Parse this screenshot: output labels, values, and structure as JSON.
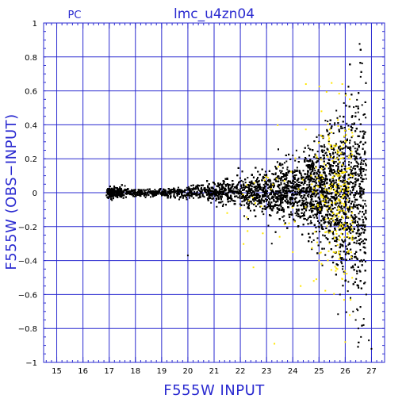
{
  "chart_data": {
    "type": "scatter",
    "title": "lmc_u4zn04",
    "corner_label": "PC",
    "xlabel": "F555W  INPUT",
    "ylabel": "F555W  (OBS−INPUT)",
    "xlim": [
      14.5,
      27.5
    ],
    "ylim": [
      -1,
      1
    ],
    "xticks": [
      15,
      16,
      17,
      18,
      19,
      20,
      21,
      22,
      23,
      24,
      25,
      26,
      27
    ],
    "xtick_labels": [
      "15",
      "16",
      "17",
      "18",
      "19",
      "20",
      "21",
      "22",
      "23",
      "24",
      "25",
      "26",
      "27"
    ],
    "yticks": [
      -1,
      -0.8,
      -0.6,
      -0.4,
      -0.2,
      0,
      0.2,
      0.4,
      0.6,
      0.8,
      1
    ],
    "ytick_labels": [
      "−1",
      "−0.8",
      "−0.6",
      "−0.4",
      "−0.2",
      "0",
      "0.2",
      "0.4",
      "0.6",
      "0.8",
      "1"
    ],
    "grid": true,
    "colors": {
      "axes": "#2a2ad0",
      "grid": "#2a2ad0",
      "series_black": "#000000",
      "series_yellow": "#ffe600"
    },
    "series": [
      {
        "color": "#000000",
        "density_profile": {
          "x_range": [
            16.9,
            26.8
          ],
          "spread_at_x": [
            [
              17,
              0.018
            ],
            [
              18,
              0.01
            ],
            [
              19,
              0.012
            ],
            [
              20,
              0.018
            ],
            [
              21,
              0.03
            ],
            [
              22,
              0.045
            ],
            [
              23,
              0.06
            ],
            [
              24,
              0.085
            ],
            [
              25,
              0.13
            ],
            [
              25.6,
              0.19
            ],
            [
              26,
              0.24
            ],
            [
              26.5,
              0.32
            ]
          ]
        },
        "points": [
          [
            17.05,
            0.02
          ],
          [
            17.1,
            -0.01
          ],
          [
            17.2,
            0.03
          ],
          [
            17.3,
            -0.02
          ],
          [
            17.4,
            0.01
          ],
          [
            17.6,
            0.04
          ],
          [
            17.8,
            -0.01
          ],
          [
            18.1,
            0.0
          ],
          [
            18.5,
            0.01
          ],
          [
            19.0,
            -0.01
          ],
          [
            19.5,
            0.02
          ],
          [
            20.0,
            -0.37
          ],
          [
            20.3,
            0.03
          ],
          [
            20.8,
            -0.02
          ],
          [
            21.3,
            0.04
          ],
          [
            21.8,
            -0.05
          ],
          [
            22.2,
            0.06
          ],
          [
            22.6,
            -0.08
          ],
          [
            23.0,
            0.1
          ],
          [
            23.4,
            -0.12
          ],
          [
            23.8,
            0.15
          ],
          [
            24.2,
            -0.2
          ],
          [
            24.5,
            0.2
          ],
          [
            24.8,
            -0.28
          ],
          [
            25.0,
            0.3
          ],
          [
            25.2,
            -0.33
          ],
          [
            25.4,
            0.35
          ],
          [
            25.5,
            -0.38
          ],
          [
            25.6,
            0.41
          ],
          [
            25.7,
            0.44
          ],
          [
            25.8,
            0.45
          ],
          [
            25.9,
            -0.45
          ],
          [
            26.0,
            -0.52
          ],
          [
            26.1,
            -0.58
          ],
          [
            26.2,
            -0.62
          ],
          [
            26.3,
            -0.7
          ],
          [
            26.4,
            -0.75
          ],
          [
            26.5,
            -0.8
          ],
          [
            26.6,
            -0.85
          ],
          [
            26.7,
            -0.78
          ],
          [
            26.8,
            -0.6
          ],
          [
            26.9,
            -0.87
          ],
          [
            27.0,
            -0.92
          ],
          [
            25.9,
            0.38
          ],
          [
            25.3,
            0.37
          ],
          [
            24.0,
            0.22
          ],
          [
            23.2,
            -0.3
          ],
          [
            25.8,
            -0.6
          ]
        ]
      },
      {
        "color": "#ffe600",
        "density_profile": {
          "x_range": [
            22.0,
            26.3
          ],
          "spread_at_x": [
            [
              22.5,
              0.1
            ],
            [
              23.5,
              0.15
            ],
            [
              24.5,
              0.2
            ],
            [
              25.5,
              0.25
            ],
            [
              26,
              0.3
            ]
          ]
        },
        "points": [
          [
            24.5,
            0.64
          ],
          [
            23.3,
            -0.89
          ],
          [
            22.5,
            -0.44
          ],
          [
            22.8,
            -0.08
          ],
          [
            23.5,
            -0.26
          ],
          [
            24.0,
            -0.35
          ],
          [
            24.3,
            -0.55
          ],
          [
            24.8,
            -0.52
          ],
          [
            25.0,
            -0.4
          ],
          [
            25.2,
            0.17
          ],
          [
            25.4,
            -0.3
          ],
          [
            25.6,
            0.2
          ],
          [
            25.7,
            -0.45
          ],
          [
            25.8,
            0.1
          ],
          [
            25.9,
            -0.2
          ],
          [
            26.0,
            0.05
          ],
          [
            26.0,
            -0.88
          ],
          [
            25.5,
            0.05
          ],
          [
            25.3,
            -0.1
          ],
          [
            21.5,
            -0.12
          ],
          [
            24.7,
            0.1
          ],
          [
            25.1,
            0.14
          ],
          [
            25.7,
            0.25
          ],
          [
            26.1,
            -0.35
          ]
        ]
      }
    ]
  }
}
